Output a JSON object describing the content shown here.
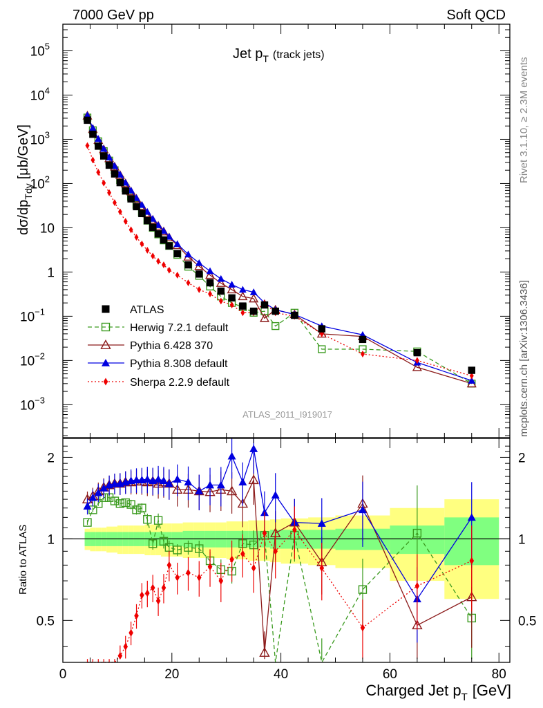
{
  "header": {
    "energy": "7000 GeV pp",
    "process": "Soft QCD",
    "plot_title_main": "Jet p",
    "plot_title_sub": "T",
    "plot_title_note": "(track jets)",
    "side_label_rivet": "Rivet 3.1.10, ≥ 2.3M events",
    "side_label_mcplots": "mcplots.cern.ch [arXiv:1306.3436]",
    "analysis_id": "ATLAS_2011_I919017"
  },
  "axes": {
    "ylabel_main": "dσ/dp",
    "ylabel_main_sub": "Tdy",
    "ylabel_main_unit": "[μb/GeV]",
    "ylabel_ratio": "Ratio to ATLAS",
    "xlabel_main": "Charged Jet p",
    "xlabel_sub": "T",
    "xlabel_unit": "[GeV]",
    "upper_ticks": [
      {
        "label": "10",
        "exp": "5"
      },
      {
        "label": "10",
        "exp": "4"
      },
      {
        "label": "10",
        "exp": "3"
      },
      {
        "label": "10",
        "exp": "2"
      },
      {
        "label": "10",
        "exp": ""
      },
      {
        "label": "1",
        "exp": ""
      },
      {
        "label": "10",
        "exp": "−1"
      },
      {
        "label": "10",
        "exp": "−2"
      },
      {
        "label": "10",
        "exp": "−3"
      }
    ],
    "upper_tick_values": [
      100000,
      10000,
      1000,
      100,
      10,
      1,
      0.1,
      0.01,
      0.001
    ],
    "ratio_ticks": [
      "2",
      "1",
      "0.5"
    ],
    "ratio_tick_values": [
      2,
      1,
      0.5
    ],
    "x_ticks": [
      "0",
      "20",
      "40",
      "60",
      "80"
    ],
    "x_tick_values": [
      0,
      20,
      40,
      60,
      80
    ]
  },
  "legend": [
    {
      "label": "ATLAS",
      "color": "#000000",
      "marker": "square-filled"
    },
    {
      "label": "Herwig 7.2.1 default",
      "color": "#3a9a1e",
      "marker": "square-open"
    },
    {
      "label": "Pythia 6.428 370",
      "color": "#8b1a1a",
      "marker": "triangle-open"
    },
    {
      "label": "Pythia 8.308 default",
      "color": "#0000e0",
      "marker": "triangle-filled"
    },
    {
      "label": "Sherpa 2.2.9 default",
      "color": "#ee0000",
      "marker": "diamond-filled"
    }
  ],
  "chart_data": {
    "type": "scatter",
    "title": "Jet pT (track jets)",
    "xlabel": "Charged Jet pT [GeV]",
    "ylabel": "dσ/dpTdy [μb/GeV]",
    "xlim": [
      0,
      82
    ],
    "ylim_upper": [
      0.00018,
      400000
    ],
    "ylim_ratio": [
      0.35,
      2.35
    ],
    "y_scale_upper": "log",
    "y_scale_ratio": "log",
    "x": [
      4.5,
      5.5,
      6.5,
      7.5,
      8.5,
      9.5,
      10.5,
      11.5,
      12.5,
      13.5,
      14.5,
      15.5,
      16.5,
      17.5,
      18.5,
      19.5,
      21,
      23,
      25,
      27,
      29,
      31,
      33,
      35,
      37,
      39,
      42.5,
      47.5,
      55,
      65,
      75
    ],
    "band_edges": [
      4,
      5,
      6,
      7,
      8,
      9,
      10,
      11,
      12,
      13,
      14,
      15,
      16,
      17,
      18,
      19,
      20,
      22,
      24,
      26,
      28,
      30,
      32,
      34,
      36,
      38,
      40,
      45,
      50,
      60,
      70,
      80
    ],
    "band_inner": [
      0.06,
      0.06,
      0.06,
      0.06,
      0.06,
      0.06,
      0.06,
      0.06,
      0.06,
      0.06,
      0.06,
      0.06,
      0.06,
      0.06,
      0.06,
      0.06,
      0.06,
      0.07,
      0.07,
      0.07,
      0.07,
      0.07,
      0.07,
      0.07,
      0.07,
      0.08,
      0.08,
      0.08,
      0.09,
      0.12,
      0.2
    ],
    "band_outer": [
      0.09,
      0.1,
      0.1,
      0.1,
      0.11,
      0.11,
      0.12,
      0.12,
      0.12,
      0.12,
      0.12,
      0.13,
      0.13,
      0.13,
      0.14,
      0.14,
      0.14,
      0.15,
      0.15,
      0.15,
      0.15,
      0.16,
      0.16,
      0.17,
      0.17,
      0.18,
      0.19,
      0.2,
      0.22,
      0.3,
      0.4
    ],
    "series": [
      {
        "name": "ATLAS",
        "values": [
          2700,
          1300,
          700,
          420,
          260,
          165,
          105,
          68,
          45,
          30,
          21,
          14.5,
          10.2,
          7.3,
          5.3,
          3.9,
          2.6,
          1.45,
          0.9,
          0.57,
          0.37,
          0.26,
          0.17,
          0.13,
          0.18,
          0.13,
          0.105,
          0.052,
          0.03,
          0.015,
          0.006
        ],
        "ratio": [
          1,
          1,
          1,
          1,
          1,
          1,
          1,
          1,
          1,
          1,
          1,
          1,
          1,
          1,
          1,
          1,
          1,
          1,
          1,
          1,
          1,
          1,
          1,
          1,
          1,
          1,
          1,
          1,
          1,
          1,
          1
        ],
        "ratio_err": [
          0,
          0,
          0,
          0,
          0,
          0,
          0,
          0,
          0,
          0,
          0,
          0,
          0,
          0,
          0,
          0,
          0,
          0,
          0,
          0,
          0,
          0,
          0,
          0,
          0,
          0,
          0,
          0,
          0,
          0,
          0
        ]
      },
      {
        "name": "Herwig 7.2.1 default",
        "values": [
          3100,
          1600,
          900,
          540,
          330,
          200,
          120,
          78,
          50,
          33,
          22,
          14.5,
          10,
          7.1,
          5.2,
          3.9,
          2.45,
          1.32,
          0.82,
          0.47,
          0.28,
          0.2,
          0.16,
          0.12,
          0.13,
          0.06,
          0.12,
          0.018,
          0.018,
          0.016,
          0.003
        ],
        "ratio": [
          1.15,
          1.28,
          1.35,
          1.42,
          1.42,
          1.38,
          1.35,
          1.36,
          1.34,
          1.28,
          1.3,
          1.18,
          0.96,
          1.17,
          0.98,
          0.93,
          0.91,
          0.93,
          0.92,
          0.83,
          0.77,
          0.76,
          0.96,
          0.95,
          1.03,
          0.3,
          1.03,
          0.33,
          0.65,
          1.05,
          0.51
        ],
        "ratio_err": [
          0.02,
          0.02,
          0.02,
          0.02,
          0.03,
          0.03,
          0.03,
          0.03,
          0.04,
          0.04,
          0.04,
          0.05,
          0.05,
          0.06,
          0.06,
          0.06,
          0.05,
          0.06,
          0.07,
          0.08,
          0.09,
          0.1,
          0.12,
          0.13,
          0.2,
          0.2,
          0.2,
          0.3,
          0.3,
          0.5,
          0.3
        ]
      },
      {
        "name": "Pythia 6.428 370",
        "values": [
          3400,
          1700,
          960,
          590,
          370,
          240,
          155,
          100,
          66,
          45,
          31,
          21,
          15,
          11,
          8.2,
          6,
          4,
          2.2,
          1.35,
          0.85,
          0.56,
          0.4,
          0.28,
          0.25,
          0.09,
          0.14,
          0.11,
          0.04,
          0.035,
          0.007,
          0.003
        ],
        "ratio": [
          1.4,
          1.44,
          1.5,
          1.55,
          1.58,
          1.6,
          1.6,
          1.62,
          1.62,
          1.63,
          1.63,
          1.62,
          1.63,
          1.6,
          1.62,
          1.6,
          1.52,
          1.52,
          1.5,
          1.49,
          1.52,
          1.5,
          1.35,
          1.65,
          0.38,
          1.05,
          1.15,
          0.82,
          1.35,
          0.48,
          0.61
        ]
      },
      {
        "name": "Pythia 8.308 default",
        "values": [
          3500,
          1800,
          1020,
          610,
          390,
          250,
          160,
          105,
          70,
          47,
          33,
          23,
          16,
          11.5,
          8.5,
          6.3,
          4.3,
          2.5,
          1.6,
          1.05,
          0.7,
          0.52,
          0.4,
          0.35,
          0.2,
          0.14,
          0.11,
          0.06,
          0.038,
          0.009,
          0.0035
        ],
        "ratio": [
          1.32,
          1.42,
          1.48,
          1.54,
          1.58,
          1.6,
          1.6,
          1.62,
          1.64,
          1.65,
          1.65,
          1.66,
          1.64,
          1.66,
          1.64,
          1.6,
          1.66,
          1.62,
          1.5,
          1.58,
          1.58,
          2.02,
          1.62,
          2.15,
          1.25,
          1.45,
          1.15,
          1.14,
          1.28,
          0.6,
          1.2
        ]
      },
      {
        "name": "Sherpa 2.2.9 default",
        "values": [
          720,
          340,
          180,
          103,
          62,
          37,
          23,
          14,
          9,
          6.1,
          4.3,
          3.1,
          2.3,
          1.75,
          1.45,
          1.1,
          0.85,
          0.57,
          0.4,
          0.32,
          0.22,
          0.18,
          0.12,
          0.12,
          0.2,
          0.12,
          0.1,
          0.04,
          0.014,
          0.01,
          0.0045
        ],
        "ratio": [
          0.27,
          0.26,
          0.26,
          0.26,
          0.24,
          0.24,
          0.37,
          0.4,
          0.45,
          0.52,
          0.62,
          0.63,
          0.66,
          0.59,
          0.66,
          0.8,
          0.72,
          0.75,
          0.72,
          0.79,
          0.7,
          0.84,
          0.88,
          0.78,
          1.05,
          0.9,
          1.08,
          0.78,
          0.47,
          0.67,
          0.83
        ]
      }
    ]
  }
}
